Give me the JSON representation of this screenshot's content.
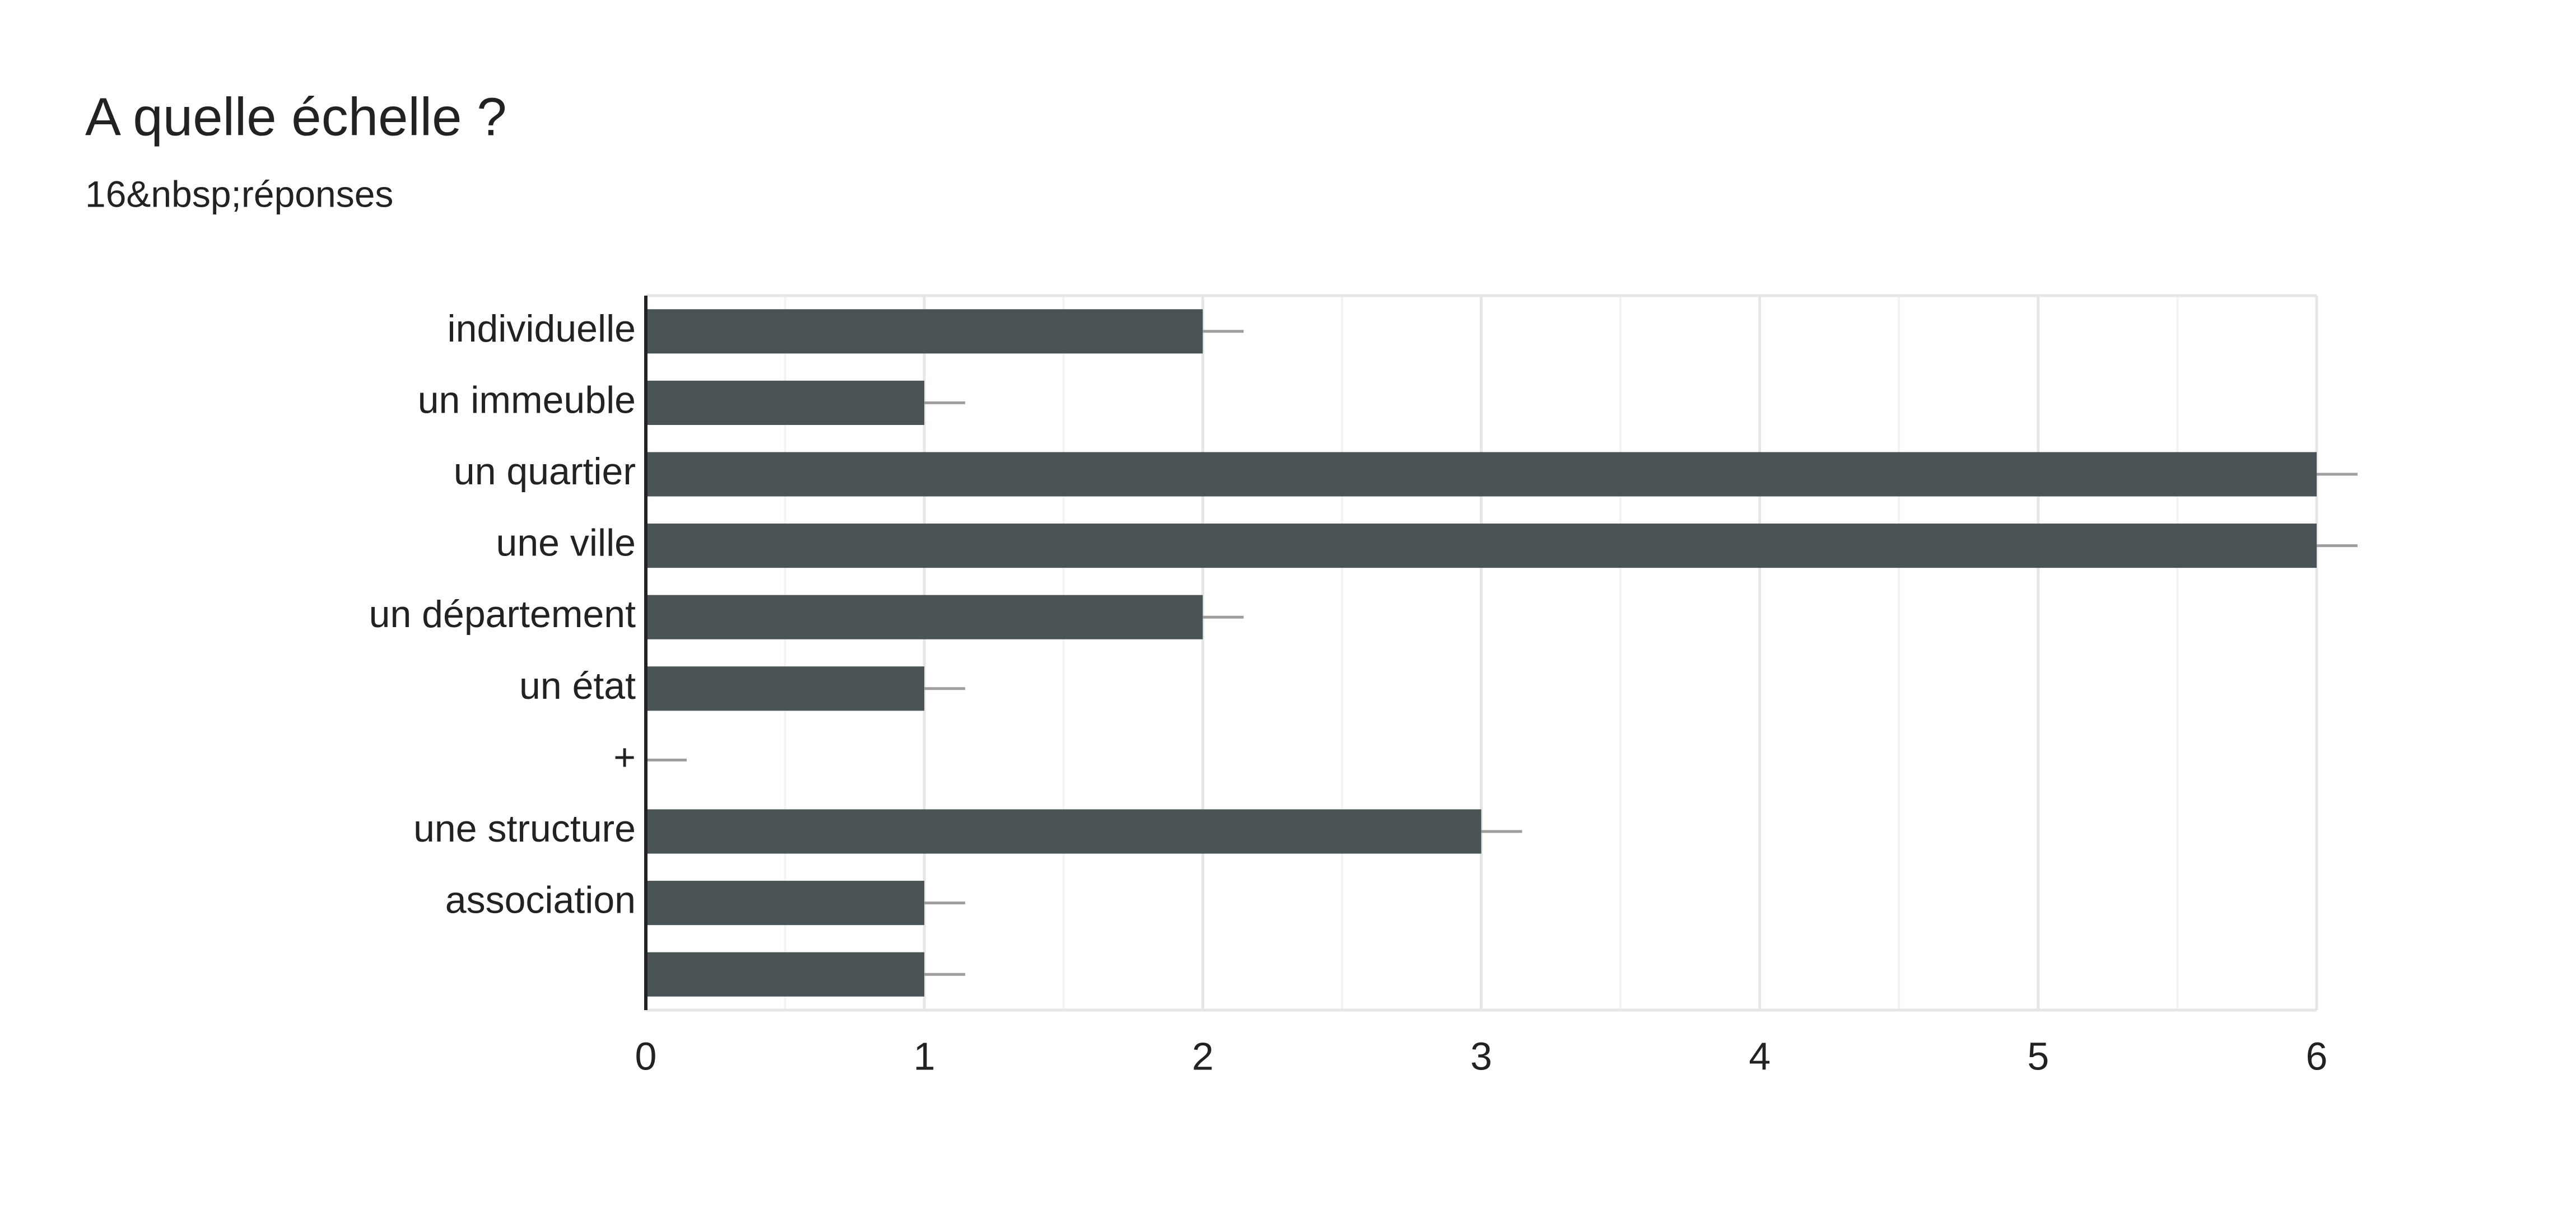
{
  "chart_data": {
    "type": "bar",
    "orientation": "horizontal",
    "title": "A quelle échelle ?",
    "subtitle": "16&nbsp;réponses",
    "categories": [
      "individuelle",
      "un immeuble",
      "un quartier",
      "une ville",
      "un département",
      "un état",
      "+",
      "une structure",
      "association",
      null
    ],
    "values": [
      2,
      1,
      6,
      6,
      2,
      1,
      0,
      3,
      1,
      1
    ],
    "color": "#4a5456",
    "xlim": [
      0,
      6
    ],
    "xticks": [
      0,
      1,
      2,
      3,
      4,
      5,
      6
    ],
    "grid": true
  }
}
